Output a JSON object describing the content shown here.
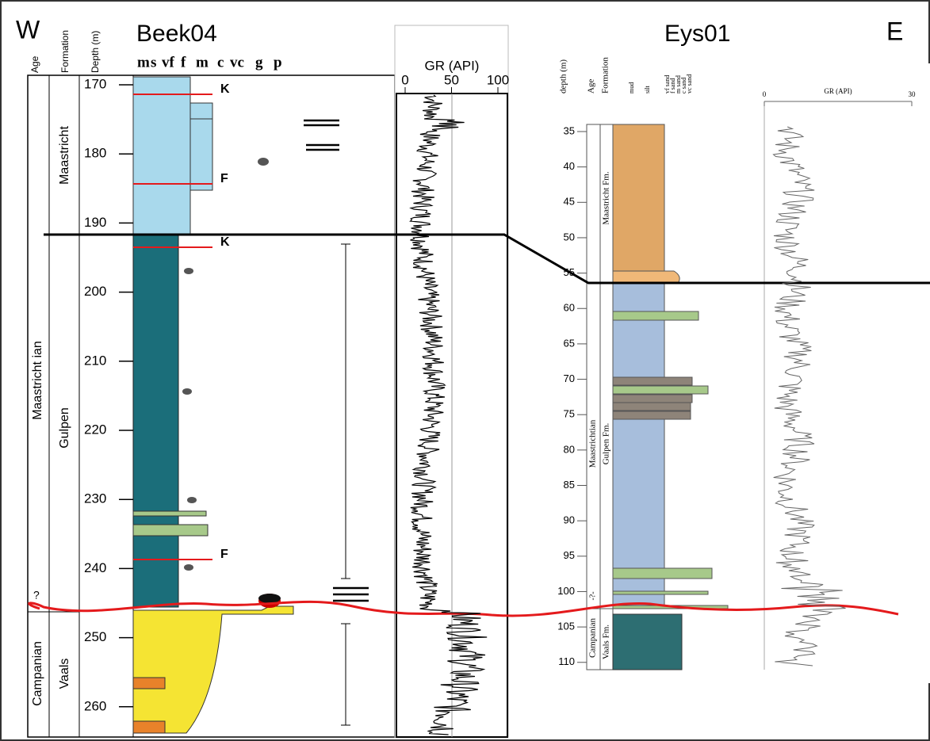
{
  "header": {
    "west": "W",
    "east": "E"
  },
  "beek04": {
    "title": "Beek04",
    "column_headers": [
      "Age",
      "Formation",
      "Depth (m)"
    ],
    "grain_sizes": [
      "m",
      "s",
      "vf",
      "f",
      "m",
      "c",
      "vc",
      "g",
      "p"
    ],
    "depths": [
      170,
      180,
      190,
      200,
      210,
      220,
      230,
      240,
      250,
      260
    ],
    "gr_label": "GR (API)",
    "gr_ticks": [
      0,
      50,
      100
    ],
    "ages": [
      "Maastricht ian",
      "Campanian"
    ],
    "formations": [
      "Maastricht",
      "Gulpen",
      "Vaals"
    ],
    "markers": [
      "K",
      "F",
      "K",
      "F"
    ],
    "uncertain": "?"
  },
  "eys01": {
    "title": "Eys01",
    "column_headers": [
      "depth (m)",
      "Age",
      "Formation"
    ],
    "grain_sizes": [
      "mud",
      "silt",
      "vf sand",
      "f sand",
      "m sand",
      "c sand",
      "vc sand"
    ],
    "depths": [
      35,
      40,
      45,
      50,
      55,
      60,
      65,
      70,
      75,
      80,
      85,
      90,
      95,
      100,
      105,
      110
    ],
    "gr_label": "GR (API)",
    "gr_ticks": [
      0,
      30
    ],
    "ages": [
      "Maastrichtian",
      "Campanian"
    ],
    "formations": [
      "Maastricht Fm.",
      "Gulpen Fm.",
      "Vaals Fm."
    ],
    "uncertain": "-?-"
  }
}
